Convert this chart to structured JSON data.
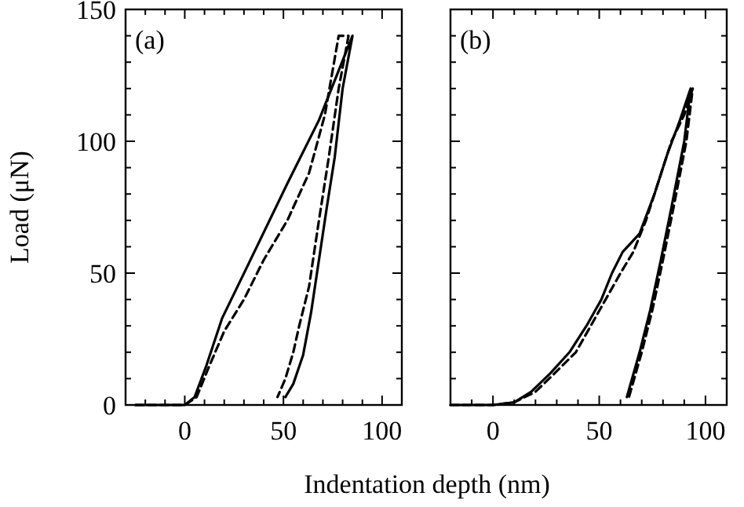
{
  "chart_data": [
    {
      "type": "line",
      "ylabel": "Load (μN)",
      "xlabel": "Indentation depth (nm)",
      "annotations": [
        "(a)"
      ],
      "xlim": [
        -30,
        110
      ],
      "ylim": [
        0,
        150
      ],
      "xticks": [
        {
          "value": -20,
          "label": null
        },
        {
          "value": -10,
          "label": null
        },
        0,
        {
          "value": 10,
          "label": null
        },
        {
          "value": 20,
          "label": null
        },
        {
          "value": 30,
          "label": null
        },
        {
          "value": 40,
          "label": null
        },
        50,
        {
          "value": 60,
          "label": null
        },
        {
          "value": 70,
          "label": null
        },
        {
          "value": 80,
          "label": null
        },
        {
          "value": 90,
          "label": null
        },
        100
      ],
      "yticks": [
        0,
        {
          "value": 10,
          "label": null
        },
        {
          "value": 20,
          "label": null
        },
        {
          "value": 30,
          "label": null
        },
        {
          "value": 40,
          "label": null
        },
        50,
        {
          "value": 60,
          "label": null
        },
        {
          "value": 70,
          "label": null
        },
        {
          "value": 80,
          "label": null
        },
        {
          "value": 90,
          "label": null
        },
        100,
        {
          "value": 110,
          "label": null
        },
        {
          "value": 120,
          "label": null
        },
        {
          "value": 130,
          "label": null
        },
        {
          "value": 140,
          "label": null
        },
        150
      ],
      "series": [
        {
          "color": "#000000",
          "line_style": "solid",
          "x": [
            -25,
            0,
            5,
            11,
            19,
            32,
            52,
            68,
            85,
            85,
            80,
            76,
            72,
            68,
            64,
            60,
            55,
            51
          ],
          "values": [
            0,
            0,
            3,
            15,
            33,
            53,
            84,
            108,
            140,
            140,
            120,
            94,
            75,
            55,
            35,
            19,
            8,
            3
          ]
        },
        {
          "color": "#000000",
          "line_style": "dashed",
          "x": [
            -25,
            0,
            6,
            12,
            20,
            30,
            40,
            52,
            63,
            71,
            78,
            83,
            78,
            73,
            68,
            63,
            58,
            55,
            51,
            47
          ],
          "values": [
            0,
            0,
            3,
            14,
            28,
            40,
            55,
            70,
            88,
            110,
            140,
            140,
            120,
            94,
            70,
            45,
            30,
            20,
            10,
            3
          ]
        }
      ]
    },
    {
      "type": "line",
      "tick_labels": "x",
      "annotations": [
        "(b)"
      ],
      "xlim": [
        -20,
        110
      ],
      "ylim": [
        0,
        150
      ],
      "xticks": [
        {
          "value": -10,
          "label": null
        },
        0,
        {
          "value": 10,
          "label": null
        },
        {
          "value": 20,
          "label": null
        },
        {
          "value": 30,
          "label": null
        },
        {
          "value": 40,
          "label": null
        },
        50,
        {
          "value": 60,
          "label": null
        },
        {
          "value": 70,
          "label": null
        },
        {
          "value": 80,
          "label": null
        },
        {
          "value": 90,
          "label": null
        },
        100
      ],
      "yticks": [
        0,
        {
          "value": 10,
          "label": null
        },
        {
          "value": 20,
          "label": null
        },
        {
          "value": 30,
          "label": null
        },
        {
          "value": 40,
          "label": null
        },
        50,
        {
          "value": 60,
          "label": null
        },
        {
          "value": 70,
          "label": null
        },
        {
          "value": 80,
          "label": null
        },
        {
          "value": 90,
          "label": null
        },
        100,
        {
          "value": 110,
          "label": null
        },
        {
          "value": 120,
          "label": null
        },
        {
          "value": 130,
          "label": null
        },
        {
          "value": 140,
          "label": null
        },
        150
      ],
      "series": [
        {
          "color": "#000000",
          "line_style": "solid",
          "x": [
            -20,
            0,
            10,
            18,
            27,
            36,
            44,
            51,
            56,
            61,
            69,
            76,
            82,
            88,
            93,
            93,
            90,
            84,
            79,
            74,
            69,
            63
          ],
          "values": [
            0,
            0,
            1,
            5,
            12,
            20,
            30,
            40,
            50,
            58,
            65,
            80,
            95,
            108,
            120,
            120,
            100,
            75,
            55,
            36,
            20,
            3
          ]
        },
        {
          "color": "#000000",
          "line_style": "dashed",
          "x": [
            -20,
            0,
            10,
            20,
            29,
            39,
            46,
            53,
            60,
            66,
            72,
            78,
            84,
            90,
            94,
            94,
            91,
            85,
            80,
            75,
            70,
            64
          ],
          "values": [
            0,
            0,
            1,
            5,
            12,
            20,
            30,
            40,
            50,
            58,
            70,
            85,
            100,
            110,
            120,
            120,
            100,
            75,
            55,
            36,
            20,
            3
          ]
        }
      ]
    }
  ]
}
